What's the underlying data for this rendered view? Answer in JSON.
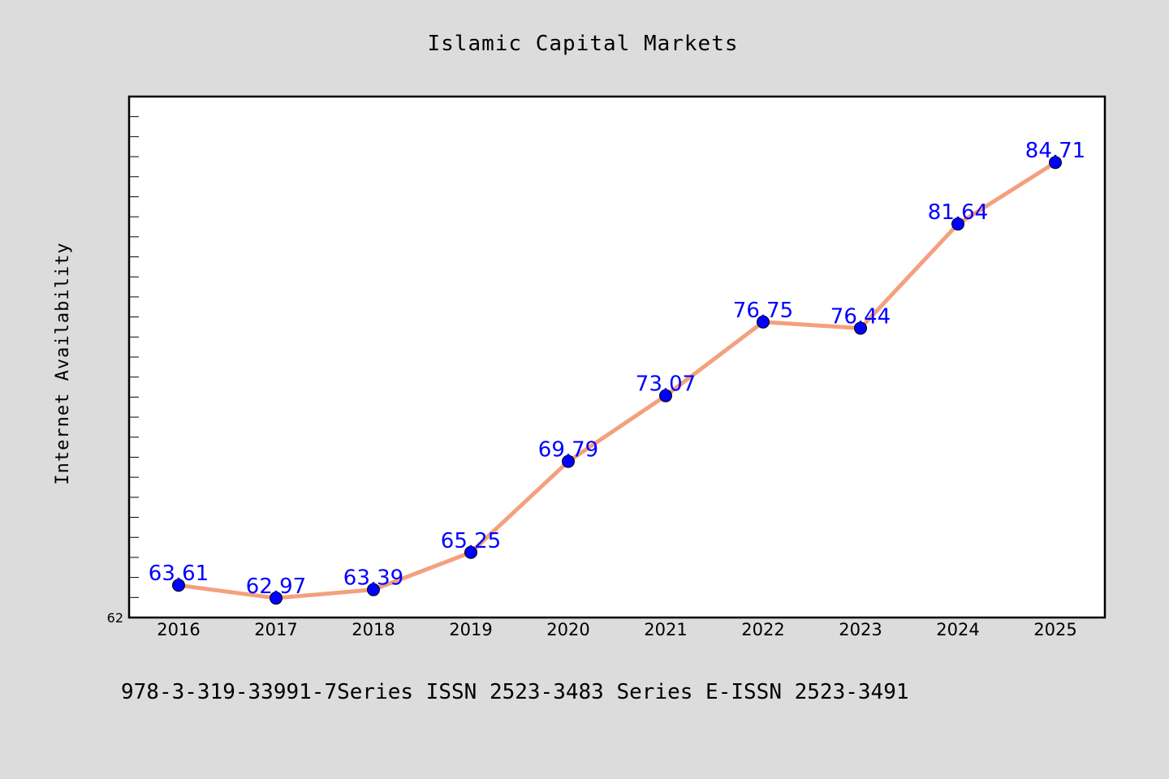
{
  "chart_data": {
    "type": "line",
    "title": "Islamic Capital Markets",
    "xlabel": "",
    "ylabel": "Internet Availability",
    "categories": [
      "2016",
      "2017",
      "2018",
      "2019",
      "2020",
      "2021",
      "2022",
      "2023",
      "2024",
      "2025"
    ],
    "series": [
      {
        "values": [
          63.61,
          62.97,
          63.39,
          65.25,
          69.79,
          73.07,
          76.75,
          76.44,
          81.64,
          84.71
        ],
        "labels": [
          "63.61",
          "62.97",
          "63.39",
          "65.25",
          "69.79",
          "73.07",
          "76.75",
          "76.44",
          "81.64",
          "84.71"
        ],
        "line_color": "#f4a07e",
        "marker_color": "#0000ff"
      }
    ],
    "ylim": [
      62,
      88
    ],
    "ytick_labels": [
      "62"
    ],
    "grid": false,
    "legend": "none"
  },
  "footer": {
    "text": "978-3-319-33991-7Series ISSN 2523-3483 Series E-ISSN 2523-3491"
  },
  "colors": {
    "background": "#dcdcdc",
    "plot_background": "#ffffff",
    "frame": "#000000",
    "data_label": "#0000ff"
  }
}
